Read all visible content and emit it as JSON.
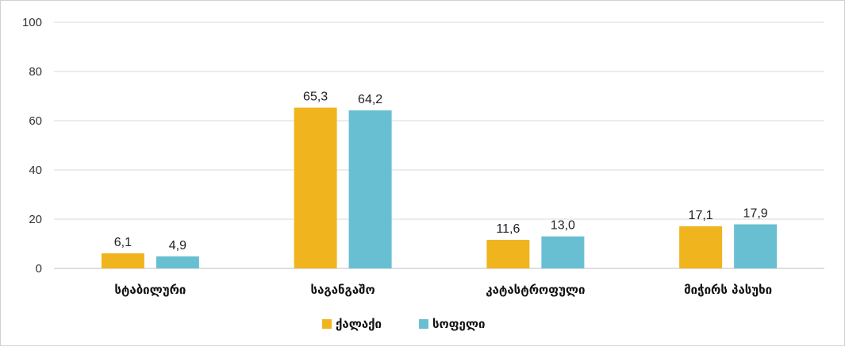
{
  "chart_data": {
    "type": "bar",
    "categories": [
      "სტაბილური",
      "საგანგაშო",
      "კატასტროფული",
      "მიჭირს პასუხი"
    ],
    "series": [
      {
        "name": "ქალაქი",
        "color": "#F0B41E",
        "values": [
          6.1,
          65.3,
          11.6,
          17.1
        ],
        "labels": [
          "6,1",
          "65,3",
          "11,6",
          "17,1"
        ]
      },
      {
        "name": "სოფელი",
        "color": "#69BFD2",
        "values": [
          4.9,
          64.2,
          13.0,
          17.9
        ],
        "labels": [
          "4,9",
          "64,2",
          "13,0",
          "17,9"
        ]
      }
    ],
    "ylim": [
      0,
      100
    ],
    "yticks": [
      "0",
      "20",
      "40",
      "60",
      "80",
      "100"
    ],
    "grid": true,
    "legend": "bottom",
    "title": "",
    "xlabel": "",
    "ylabel": ""
  }
}
